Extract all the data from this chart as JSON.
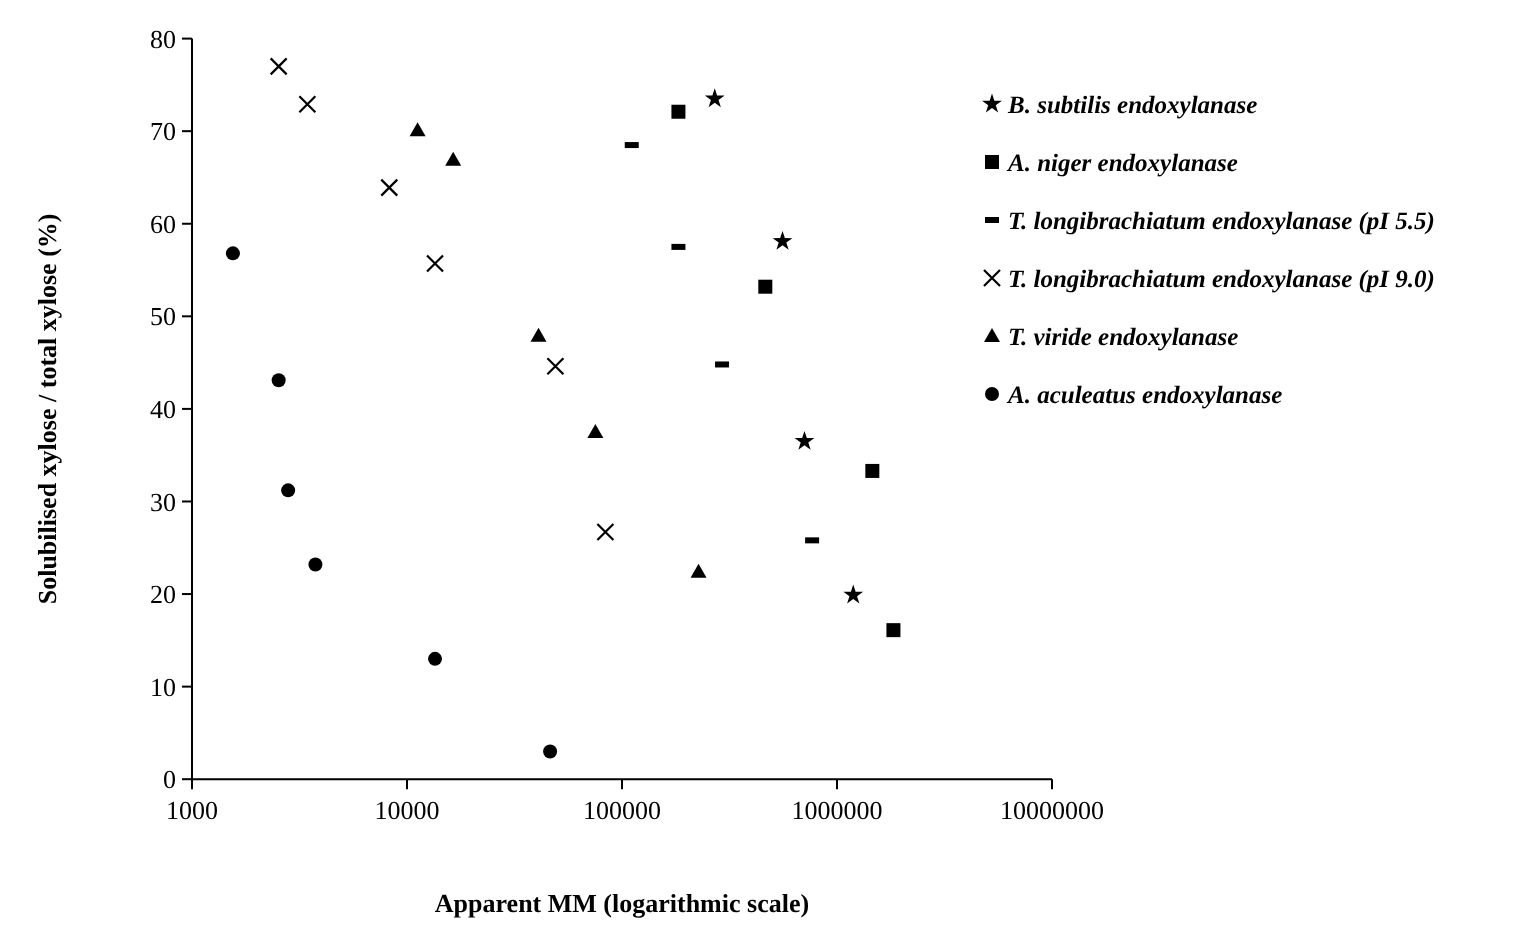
{
  "chart_data": {
    "type": "scatter",
    "xlabel": "Apparent MM (logarithmic scale)",
    "ylabel": "Solubilised xylose / total xylose (%)",
    "log": "x",
    "xlim": [
      1000,
      10000000
    ],
    "xticks": [
      1000,
      10000,
      100000,
      1000000,
      10000000
    ],
    "ylim": [
      0,
      80
    ],
    "yticks": [
      0,
      10,
      20,
      30,
      40,
      50,
      60,
      70,
      80
    ],
    "grid": false,
    "legend": "right",
    "series": [
      {
        "name": "B. subtilis endoxylanase",
        "color": "#000000",
        "marker": "star",
        "x": [
          270000,
          558000,
          706000,
          1190000
        ],
        "values": [
          73.5,
          58.1,
          36.5,
          19.9
        ]
      },
      {
        "name": "A. niger endoxylanase",
        "color": "#000000",
        "marker": "square",
        "x": [
          183000,
          464000,
          1460000,
          1830000
        ],
        "values": [
          72.1,
          53.2,
          33.3,
          16.1
        ]
      },
      {
        "name": "T. longibrachiatum endoxylanase (pI 5.5)",
        "color": "#000000",
        "x": [
          111000,
          183000,
          292000,
          766000
        ],
        "values": [
          68.5,
          57.5,
          44.8,
          25.8
        ]
      },
      {
        "name": "T. longibrachiatum endoxylanase (pI 9.0)",
        "color": "#000000",
        "marker": "cross",
        "x": [
          2530,
          3440,
          8270,
          13500,
          49000,
          83700
        ],
        "values": [
          77.0,
          72.9,
          63.9,
          55.7,
          44.6,
          26.7
        ]
      },
      {
        "name": "T. viride endoxylanase",
        "color": "#000000",
        "marker": "triangle",
        "x": [
          11200,
          16400,
          40900,
          75200,
          227000
        ],
        "values": [
          70.1,
          66.9,
          47.9,
          37.5,
          22.4
        ]
      },
      {
        "name": "A. aculeatus endoxylanase",
        "color": "#000000",
        "marker": "circle",
        "x": [
          1550,
          2530,
          2800,
          3750,
          13500,
          46300
        ],
        "values": [
          56.8,
          43.1,
          31.2,
          23.2,
          13.0,
          3.0
        ]
      }
    ]
  }
}
